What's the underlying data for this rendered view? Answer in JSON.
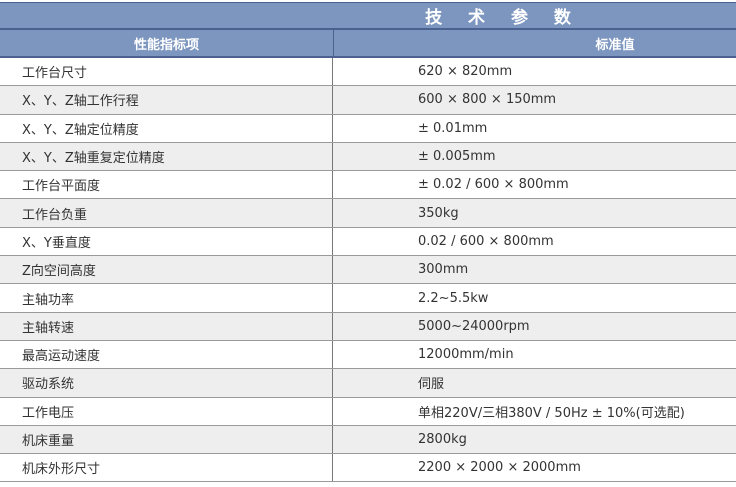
{
  "title": "技 术 参 数",
  "headers": {
    "item": "性能指标项",
    "value": "标准值"
  },
  "rows": [
    {
      "item": "工作台尺寸",
      "value": "620 × 820mm"
    },
    {
      "item": "X、Y、Z轴工作行程",
      "value": "600 × 800 × 150mm"
    },
    {
      "item": "X、Y、Z轴定位精度",
      "value": "± 0.01mm"
    },
    {
      "item": "X、Y、Z轴重复定位精度",
      "value": "± 0.005mm"
    },
    {
      "item": "工作台平面度",
      "value": "± 0.02 / 600 × 800mm"
    },
    {
      "item": "工作台负重",
      "value": "350kg"
    },
    {
      "item": "X、Y垂直度",
      "value": "0.02 / 600 × 800mm"
    },
    {
      "item": "Z向空间高度",
      "value": "300mm"
    },
    {
      "item": "主轴功率",
      "value": "2.2~5.5kw"
    },
    {
      "item": "主轴转速",
      "value": "5000~24000rpm"
    },
    {
      "item": "最高运动速度",
      "value": "12000mm/min"
    },
    {
      "item": "驱动系统",
      "value": "伺服"
    },
    {
      "item": "工作电压",
      "value": "单相220V/三相380V / 50Hz ± 10%(可选配)"
    },
    {
      "item": "机床重量",
      "value": "2800kg"
    },
    {
      "item": "机床外形尺寸",
      "value": "2200 × 2000 × 2000mm"
    }
  ],
  "colors": {
    "header_bg": "#7d96bf",
    "header_border": "#4b6190",
    "alt_row": "#eeeeee"
  }
}
